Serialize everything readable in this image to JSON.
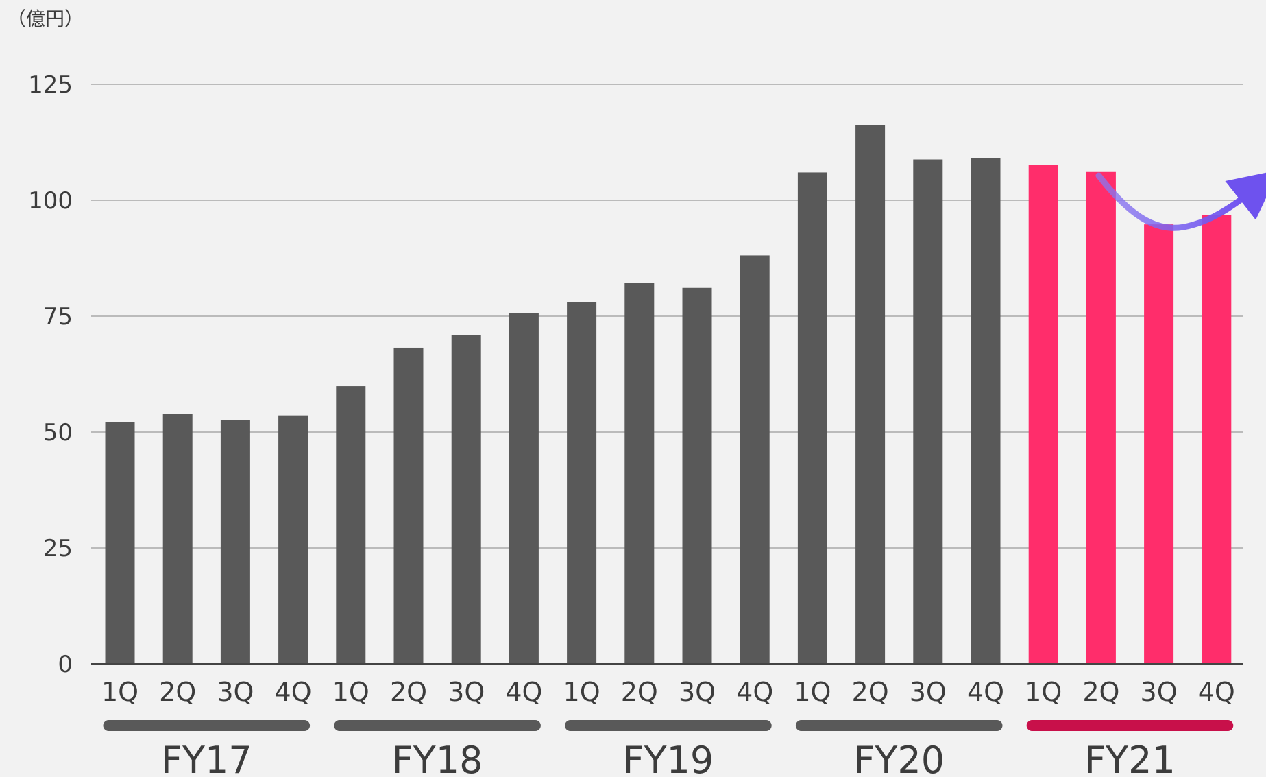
{
  "chart_data": {
    "type": "bar",
    "unit_label": "（億円）",
    "ylim": [
      0,
      125
    ],
    "yticks": [
      0,
      25,
      50,
      75,
      100,
      125
    ],
    "grid": true,
    "categories": [
      "1Q",
      "2Q",
      "3Q",
      "4Q",
      "1Q",
      "2Q",
      "3Q",
      "4Q",
      "1Q",
      "2Q",
      "3Q",
      "4Q",
      "1Q",
      "2Q",
      "3Q",
      "4Q",
      "1Q",
      "2Q",
      "3Q",
      "4Q"
    ],
    "groups": [
      {
        "label": "FY17",
        "color": "#595959"
      },
      {
        "label": "FY18",
        "color": "#595959"
      },
      {
        "label": "FY19",
        "color": "#595959"
      },
      {
        "label": "FY20",
        "color": "#595959"
      },
      {
        "label": "FY21",
        "color": "#c8104a"
      }
    ],
    "values": [
      52.2,
      53.9,
      52.6,
      53.6,
      59.9,
      68.2,
      71.0,
      75.6,
      78.1,
      82.2,
      81.1,
      88.1,
      106.0,
      116.2,
      108.8,
      109.1,
      107.6,
      106.1,
      94.8,
      96.8
    ],
    "bar_colors": [
      "#595959",
      "#595959",
      "#595959",
      "#595959",
      "#595959",
      "#595959",
      "#595959",
      "#595959",
      "#595959",
      "#595959",
      "#595959",
      "#595959",
      "#595959",
      "#595959",
      "#595959",
      "#595959",
      "#ff2d6b",
      "#ff2d6b",
      "#ff2d6b",
      "#ff2d6b"
    ],
    "trend_arrow_color": "#7a5cf0"
  }
}
